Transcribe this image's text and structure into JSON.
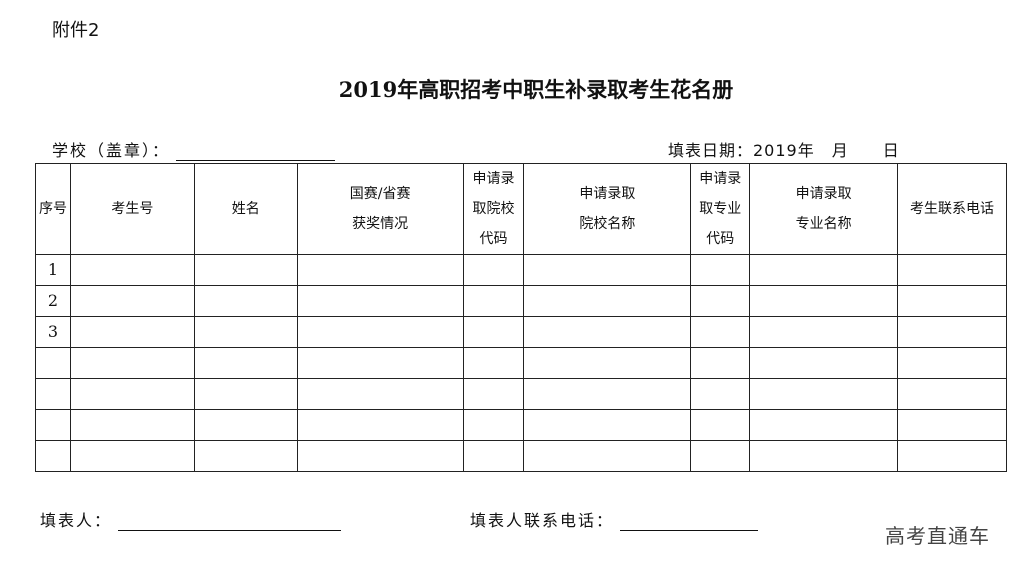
{
  "attachment": "附件2",
  "title": "2019年高职招考中职生补录取考生花名册",
  "school_label": "学校（盖章）：",
  "date_label": "填表日期：2019年　月　　日",
  "table": {
    "headers": [
      "序号",
      "考生号",
      "姓名",
      "国赛/省赛\n获奖情况",
      "申请录\n取院校\n代码",
      "申请录取\n院校名称",
      "申请录\n取专业\n代码",
      "申请录取\n专业名称",
      "考生联系电话"
    ],
    "rows": [
      [
        "1"
      ],
      [
        "2"
      ],
      [
        "3"
      ],
      [
        ""
      ],
      [
        ""
      ],
      [
        ""
      ],
      [
        ""
      ]
    ]
  },
  "filler_label": "填表人：",
  "filler_phone_label": "填表人联系电话：",
  "watermark": "高考直通车"
}
